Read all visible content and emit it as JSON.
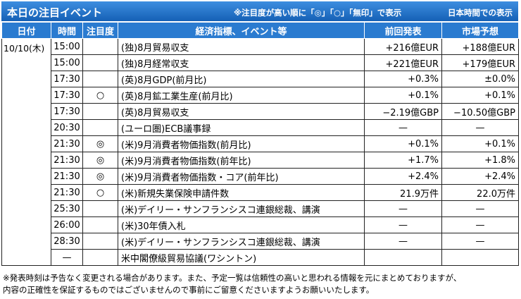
{
  "header": {
    "title": "本日の注目イベント",
    "note": "※注目度が高い順に「◎」「○」「無印」で表示",
    "timezone": "日本時間での表示"
  },
  "table": {
    "columns": [
      "日付",
      "時間",
      "注目度",
      "経済指標、イベント等",
      "前回発表",
      "市場予想"
    ],
    "date": "10/10(木)",
    "rows": [
      {
        "time": "15:00",
        "event": "(独)8月貿易収支",
        "previous": "+216億EUR",
        "forecast": "+188億EUR"
      },
      {
        "time": "15:00",
        "event": "(独)8月経常収支",
        "previous": "+221億EUR",
        "forecast": "+179億EUR"
      },
      {
        "time": "17:30",
        "event": "(英)8月GDP(前月比)",
        "previous": "+0.3%",
        "forecast": "±0.0%"
      },
      {
        "time": "17:30",
        "attention": "○",
        "event": "(英)8月鉱工業生産(前月比)",
        "previous": "+0.1%",
        "forecast": "+0.1%"
      },
      {
        "time": "17:30",
        "event": "(英)8月貿易収支",
        "previous": "−2.19億GBP",
        "forecast": "−10.50億GBP"
      },
      {
        "time": "20:30",
        "event": "(ユーロ圏)ECB議事録",
        "previous": "—",
        "forecast": "—"
      },
      {
        "time": "21:30",
        "attention": "◎",
        "event": "(米)9月消費者物価指数(前月比)",
        "previous": "+0.1%",
        "forecast": "+0.1%"
      },
      {
        "time": "21:30",
        "attention": "◎",
        "event": "(米)9月消費者物価指数(前年比)",
        "previous": "+1.7%",
        "forecast": "+1.8%"
      },
      {
        "time": "21:30",
        "attention": "◎",
        "event": "(米)9月消費者物価指数・コア(前年比)",
        "previous": "+2.4%",
        "forecast": "+2.4%"
      },
      {
        "time": "21:30",
        "attention": "○",
        "event": "(米)新規失業保険申請件数",
        "previous": "21.9万件",
        "forecast": "22.0万件"
      },
      {
        "time": "25:30",
        "event": "(米)デイリー・サンフランシスコ連銀総裁、講演",
        "previous": "—",
        "forecast": "—"
      },
      {
        "time": "26:00",
        "event": "(米)30年債入札",
        "previous": "—",
        "forecast": "—"
      },
      {
        "time": "28:30",
        "event": "(米)デイリー・サンフランシスコ連銀総裁、講演",
        "previous": "—",
        "forecast": "—"
      },
      {
        "time": "—",
        "event": "米中閣僚級貿易協議(ワシントン)"
      }
    ]
  },
  "footer": {
    "notes": [
      "※発表時刻は予告なく変更される場合があります。また、予定一覧は信頼性の高いと思われる情報を元にまとめておりますが、",
      "内容の正確性を保証するものではございませんので事前にご留意くださいますようお願いいたします。"
    ]
  }
}
